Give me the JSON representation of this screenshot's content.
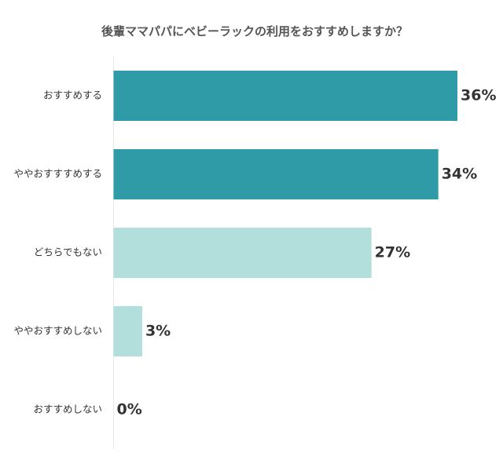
{
  "chart_data": {
    "type": "bar",
    "orientation": "horizontal",
    "title": "後輩ママパパにベビーラックの利用をおすすめしますか？",
    "categories": [
      "おすすめする",
      "ややおすすすめする",
      "どちらでもない",
      "ややおすすめしない",
      "おすすめしない"
    ],
    "values": [
      36,
      34,
      27,
      3,
      0
    ],
    "value_labels": [
      "36%",
      "34%",
      "27%",
      "3%",
      "0%"
    ],
    "colors": [
      "#2e9ba6",
      "#2e9ba6",
      "#b2dfdc",
      "#b2dfdc",
      "#b2dfdc"
    ],
    "xlim": [
      0,
      36
    ],
    "grid": false,
    "legend": "none"
  }
}
